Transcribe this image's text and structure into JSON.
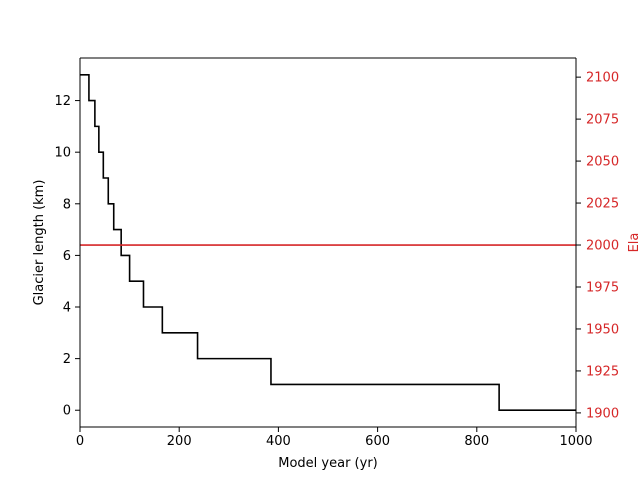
{
  "chart_data": {
    "type": "line",
    "xlabel": "Model year (yr)",
    "ylabel": "Glacier length (km)",
    "y2label": "Ela",
    "xlim": [
      0,
      1000
    ],
    "ylim": [
      -0.65,
      13.65
    ],
    "y2lim": [
      1891.6,
      2111.4
    ],
    "xticks": [
      0,
      200,
      400,
      600,
      800,
      1000
    ],
    "yticks": [
      0,
      2,
      4,
      6,
      8,
      10,
      12
    ],
    "y2ticks": [
      1900,
      1925,
      1950,
      1975,
      2000,
      2025,
      2050,
      2075,
      2100
    ],
    "grid": false,
    "colors": {
      "length": "#000000",
      "ela": "#d62728",
      "axes": "#000000"
    },
    "series": [
      {
        "axis": "left",
        "style": "step",
        "x": [
          0,
          18,
          30,
          38,
          47,
          57,
          68,
          83,
          100,
          128,
          166,
          237,
          385,
          845,
          1000
        ],
        "y": [
          13,
          12,
          11,
          10,
          9,
          8,
          7,
          6,
          5,
          4,
          3,
          2,
          1,
          0,
          0
        ]
      },
      {
        "axis": "right",
        "style": "line",
        "x": [
          0,
          1000
        ],
        "y": [
          2000,
          2000
        ]
      }
    ]
  }
}
